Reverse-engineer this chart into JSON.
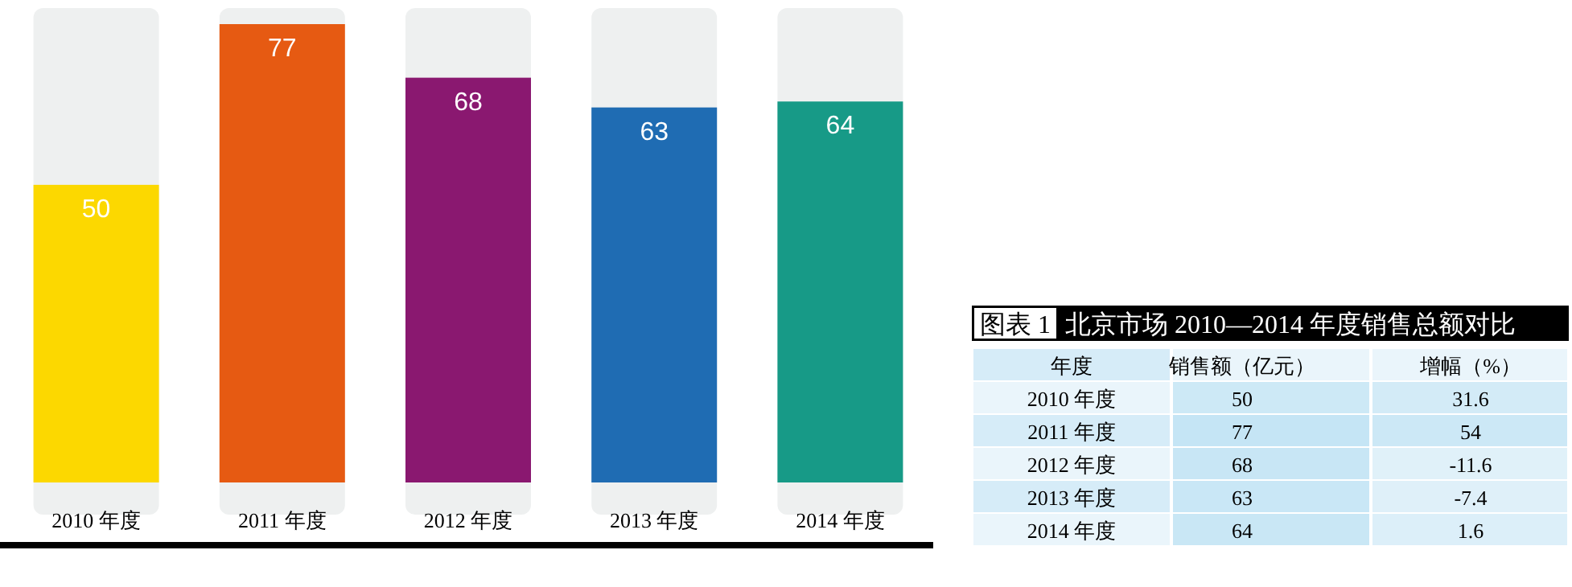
{
  "chart_data": [
    {
      "type": "bar",
      "categories": [
        "2010 年度",
        "2011 年度",
        "2012 年度",
        "2013 年度",
        "2014 年度"
      ],
      "values": [
        50,
        77,
        68,
        63,
        64
      ],
      "colors": [
        "#fcd800",
        "#e65a12",
        "#8a1870",
        "#1f6cb3",
        "#179a87"
      ],
      "data_labels": true
    },
    {
      "type": "heatmap",
      "title": "图表 1",
      "subtitle": "北京市场 2010—2014 年度销售总额对比",
      "ylabel": "年度",
      "categories": [
        "销售额（亿元）",
        "增幅（%）"
      ],
      "y_categories": [
        "2010 年度",
        "2011 年度",
        "2012 年度",
        "2013 年度",
        "2014 年度"
      ],
      "cells": [
        [
          50,
          31.6
        ],
        [
          77,
          54
        ],
        [
          68,
          -11.6
        ],
        [
          63,
          -7.4
        ],
        [
          64,
          1.6
        ]
      ],
      "cell_labels": [
        [
          "50",
          "31.6"
        ],
        [
          "77",
          "54"
        ],
        [
          "68",
          "-11.6"
        ],
        [
          "63",
          "-7.4"
        ],
        [
          "64",
          "1.6"
        ]
      ]
    }
  ]
}
